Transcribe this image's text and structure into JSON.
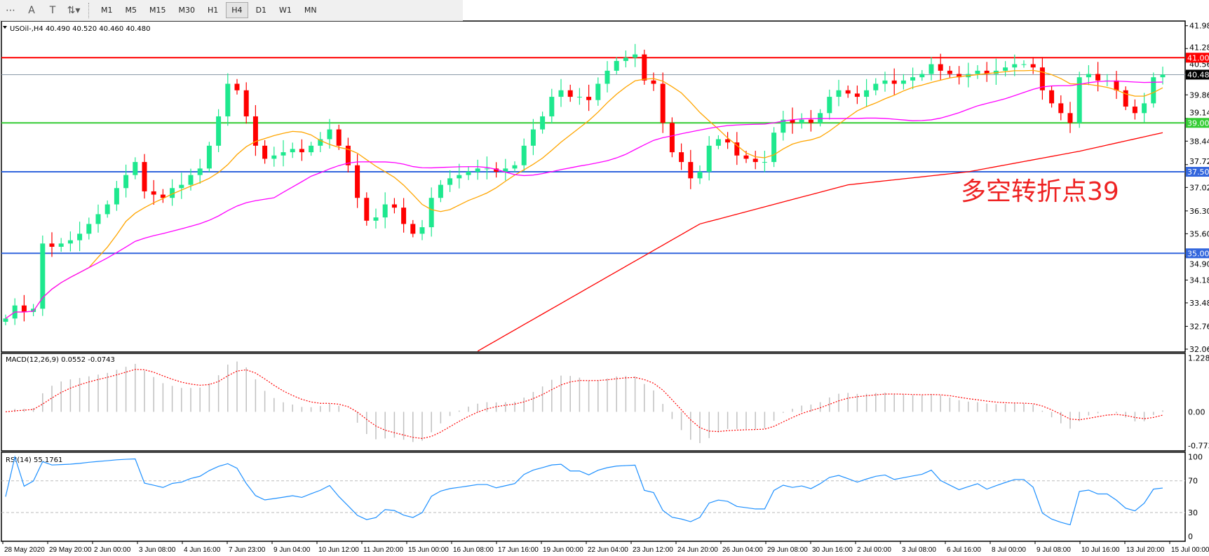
{
  "toolbar": {
    "tools": [
      {
        "icon": "period-separator-icon",
        "glyph": "⋯"
      },
      {
        "icon": "text-icon",
        "glyph": "A"
      },
      {
        "icon": "text-label-icon",
        "glyph": "T"
      },
      {
        "icon": "arrows-dropdown-icon",
        "glyph": "⇅▾"
      }
    ],
    "timeframes": [
      "M1",
      "M5",
      "M15",
      "M30",
      "H1",
      "H4",
      "D1",
      "W1",
      "MN"
    ],
    "active_timeframe": "H4"
  },
  "chart_data": {
    "type": "candlestick",
    "symbol_label": "USOil-,H4  40.490 40.520 40.460 40.480",
    "ylim": [
      32.06,
      41.98
    ],
    "y_ticks": [
      "41.980",
      "41.280",
      "40.560",
      "39.860",
      "39.140",
      "38.440",
      "37.720",
      "37.020",
      "36.300",
      "35.600",
      "34.900",
      "34.180",
      "33.480",
      "32.760",
      "32.060"
    ],
    "x_ticks": [
      "28 May 2020",
      "29 May 20:00",
      "2 Jun 00:00",
      "3 Jun 08:00",
      "4 Jun 16:00",
      "7 Jun 23:00",
      "9 Jun 04:00",
      "10 Jun 12:00",
      "11 Jun 20:00",
      "15 Jun 00:00",
      "16 Jun 08:00",
      "17 Jun 16:00",
      "19 Jun 00:00",
      "22 Jun 04:00",
      "23 Jun 12:00",
      "24 Jun 20:00",
      "26 Jun 04:00",
      "29 Jun 08:00",
      "30 Jun 16:00",
      "2 Jul 00:00",
      "3 Jul 08:00",
      "6 Jul 16:00",
      "8 Jul 00:00",
      "9 Jul 08:00",
      "10 Jul 16:00",
      "13 Jul 20:00",
      "15 Jul 00:00"
    ],
    "closes": [
      33.0,
      33.4,
      33.2,
      33.3,
      35.3,
      35.2,
      35.3,
      35.4,
      35.6,
      35.9,
      36.2,
      36.5,
      37.0,
      37.4,
      37.8,
      36.9,
      36.8,
      36.7,
      37.0,
      37.1,
      37.4,
      37.6,
      38.3,
      39.2,
      40.2,
      40.0,
      39.2,
      38.3,
      37.9,
      38.0,
      38.1,
      38.2,
      38.1,
      38.3,
      38.5,
      38.8,
      38.3,
      37.7,
      36.7,
      36.0,
      36.1,
      36.5,
      36.4,
      35.9,
      35.6,
      35.8,
      36.7,
      37.1,
      37.3,
      37.4,
      37.5,
      37.6,
      37.6,
      37.5,
      37.6,
      37.7,
      38.3,
      38.8,
      39.2,
      39.8,
      40.0,
      39.8,
      39.8,
      39.7,
      40.2,
      40.6,
      40.9,
      41.0,
      41.1,
      40.3,
      40.2,
      39.0,
      38.1,
      37.8,
      37.3,
      37.5,
      38.3,
      38.5,
      38.4,
      38.0,
      37.9,
      37.8,
      37.8,
      38.7,
      39.1,
      39.0,
      39.1,
      39.0,
      39.3,
      39.8,
      40.0,
      39.9,
      39.8,
      40.0,
      40.2,
      40.3,
      40.2,
      40.3,
      40.4,
      40.5,
      40.8,
      40.6,
      40.5,
      40.4,
      40.5,
      40.6,
      40.5,
      40.6,
      40.7,
      40.8,
      40.8,
      40.7,
      40.0,
      39.6,
      39.3,
      39.0,
      40.4,
      40.5,
      40.3,
      40.3,
      40.0,
      39.5,
      39.3,
      39.6,
      40.4,
      40.48
    ],
    "moving_averages": [
      {
        "color": "#ffa500",
        "period_samples": 10
      },
      {
        "color": "#ff00ff",
        "period_samples": 30
      },
      {
        "color": "#ff0000",
        "points": [
          [
            51,
            32.0
          ],
          [
            75,
            35.9
          ],
          [
            91,
            37.1
          ],
          [
            104,
            37.5
          ],
          [
            116,
            38.13
          ],
          [
            125,
            38.7
          ]
        ]
      }
    ],
    "levels": [
      {
        "value": 41.0,
        "label": "41.000",
        "color": "#ff0000"
      },
      {
        "value": 40.48,
        "label": "40.480",
        "color": "#8a9aa8",
        "label_bg": "#000000"
      },
      {
        "value": 39.0,
        "label": "39.000",
        "color": "#33cc33"
      },
      {
        "value": 37.5,
        "label": "37.500",
        "color": "#3366dd"
      },
      {
        "value": 35.0,
        "label": "35.000",
        "color": "#3366dd"
      }
    ],
    "annotation": {
      "text": "多空转折点39",
      "color": "#ee2222"
    },
    "colors": {
      "bull": "#1ee88e",
      "bear": "#ff0000"
    },
    "macd": {
      "label": "MACD(12,26,9) 0.0552 -0.0743",
      "ylim": [
        -0.7738,
        1.2281
      ],
      "y_ticks": [
        "1.2281",
        "0.00",
        "-0.7738"
      ],
      "hist_color": "#c0c0c0",
      "signal_color": "#ff0000"
    },
    "rsi": {
      "label": "RSI(14) 55.1761",
      "ylim": [
        0,
        100
      ],
      "y_ticks": [
        "100",
        "70",
        "30",
        "0"
      ],
      "levels": [
        70,
        30
      ],
      "color": "#1e90ff"
    }
  }
}
